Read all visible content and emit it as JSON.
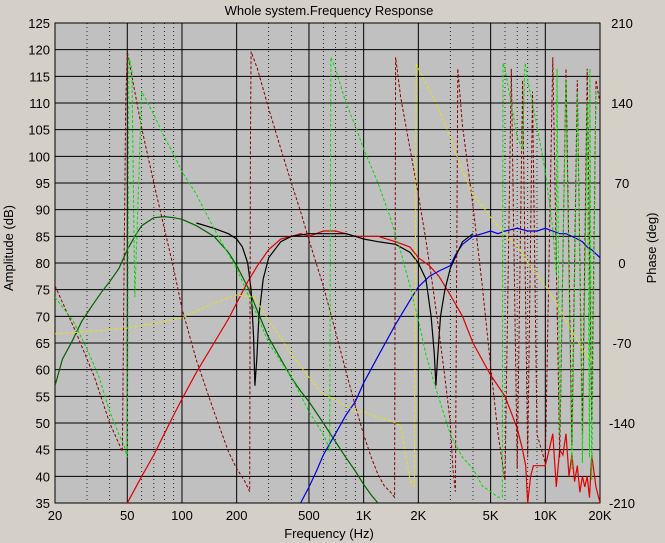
{
  "chart_data": {
    "type": "line",
    "title": "Whole system.Frequency Response",
    "xlabel": "Frequency (Hz)",
    "ylabel": "Amplitude (dB)",
    "y2label": "Phase (deg)",
    "xscale": "log",
    "xlim": [
      20,
      20000
    ],
    "ylim": [
      35,
      125
    ],
    "y2lim": [
      -210,
      210
    ],
    "grid": true,
    "plot_background": "#c0c0c0",
    "xticks": [
      {
        "value": 20,
        "label": "20"
      },
      {
        "value": 50,
        "label": "50"
      },
      {
        "value": 100,
        "label": "100"
      },
      {
        "value": 200,
        "label": "200"
      },
      {
        "value": 500,
        "label": "500"
      },
      {
        "value": 1000,
        "label": "1K"
      },
      {
        "value": 2000,
        "label": "2K"
      },
      {
        "value": 5000,
        "label": "5K"
      },
      {
        "value": 10000,
        "label": "10K"
      },
      {
        "value": 20000,
        "label": "20K"
      }
    ],
    "x_minor_gridlines": [
      30,
      40,
      60,
      70,
      80,
      90,
      300,
      400,
      600,
      700,
      800,
      900,
      3000,
      4000,
      6000,
      7000,
      8000,
      9000
    ],
    "yticks": [
      35,
      40,
      45,
      50,
      55,
      60,
      65,
      70,
      75,
      80,
      85,
      90,
      95,
      100,
      105,
      110,
      115,
      120,
      125
    ],
    "y2ticks": [
      210,
      140,
      70,
      0,
      -70,
      -140,
      -210
    ],
    "series": [
      {
        "color": "#006400",
        "style": "solid",
        "axis": "left",
        "x": [
          20,
          22,
          25,
          28,
          32,
          36,
          40,
          45,
          50,
          55,
          60,
          70,
          80,
          90,
          100,
          120,
          150,
          180,
          200,
          230,
          260,
          300,
          350,
          400,
          450,
          500,
          600,
          700,
          800,
          900,
          1000,
          1100,
          1200
        ],
        "y": [
          57,
          62,
          65.5,
          69,
          72,
          74.5,
          76.5,
          79,
          82.5,
          85,
          87,
          88.5,
          88.7,
          88.5,
          88.2,
          87,
          85,
          82,
          79.5,
          75.5,
          71,
          66,
          62,
          58.5,
          56,
          54,
          50,
          46.5,
          43.5,
          41,
          38.5,
          36.5,
          35
        ]
      },
      {
        "color": "#e00000",
        "style": "solid",
        "axis": "left",
        "x": [
          50,
          60,
          70,
          80,
          90,
          100,
          120,
          150,
          180,
          200,
          230,
          260,
          300,
          350,
          400,
          450,
          500,
          600,
          700,
          800,
          900,
          1000,
          1200,
          1500,
          1800,
          2000,
          2300,
          2600,
          3000,
          3500,
          4000,
          5000,
          6000,
          7000,
          7500,
          7800,
          8000,
          8300,
          8600,
          9000,
          10000,
          10500,
          11000,
          11500,
          12000,
          12500,
          13000,
          13500,
          14000,
          14500,
          15000,
          15500,
          16000,
          16500,
          17000,
          17500,
          18000,
          19000,
          20000
        ],
        "y": [
          35,
          40,
          44,
          48,
          51.5,
          54.5,
          59.5,
          65,
          69.5,
          72.5,
          76.5,
          79.5,
          82.5,
          84.5,
          85,
          85.5,
          85,
          86,
          86,
          85.5,
          85,
          85,
          85,
          84,
          83,
          81,
          79.5,
          77.5,
          74,
          70,
          65,
          59,
          55,
          49,
          45,
          42,
          35,
          40,
          42,
          42,
          42,
          45,
          48,
          38,
          45,
          44,
          48,
          40,
          44,
          39,
          42,
          37,
          40,
          38,
          40,
          36,
          44,
          38,
          35
        ]
      },
      {
        "color": "#0000dd",
        "style": "solid",
        "axis": "left",
        "x": [
          450,
          500,
          550,
          600,
          700,
          800,
          900,
          1000,
          1200,
          1500,
          1800,
          2000,
          2300,
          2600,
          3000,
          3200,
          3500,
          4000,
          4500,
          5000,
          5500,
          6000,
          7000,
          8000,
          9000,
          10000,
          11000,
          12000,
          13000,
          14000,
          15000,
          16000,
          17000,
          18000,
          20000
        ],
        "y": [
          35,
          38,
          41,
          44,
          48,
          51.5,
          54,
          57.5,
          62.5,
          68.5,
          73,
          75.5,
          77.5,
          78.5,
          79.5,
          81.5,
          83.5,
          85,
          85.5,
          86,
          85.5,
          86,
          86.5,
          86,
          86,
          86.5,
          86,
          85.5,
          85.5,
          85,
          84.5,
          84,
          83,
          82.5,
          81
        ]
      },
      {
        "color": "#000000",
        "style": "solid",
        "axis": "left",
        "x": [
          120,
          150,
          180,
          200,
          215,
          230,
          240,
          248,
          252,
          258,
          265,
          280,
          300,
          350,
          400,
          500,
          600,
          700,
          800,
          900,
          1000,
          1200,
          1500,
          1800,
          2000,
          2200,
          2350,
          2450,
          2500,
          2550,
          2650,
          2800,
          3000,
          3500,
          4000
        ],
        "y": [
          87.5,
          86.5,
          85.5,
          84.5,
          83,
          80,
          75,
          66,
          57,
          62,
          70,
          77,
          81,
          84,
          85,
          85.5,
          85.5,
          85.5,
          85.5,
          85,
          84.5,
          84,
          83.5,
          82,
          80,
          77,
          70,
          63,
          57,
          62,
          70,
          75,
          79,
          84,
          85.5
        ]
      },
      {
        "color": "#8b0000",
        "style": "dashed",
        "axis": "right",
        "x": [
          20,
          26,
          33,
          40,
          47,
          48,
          49,
          50,
          55,
          60,
          70,
          80,
          90,
          100,
          120,
          150,
          180,
          200,
          220,
          236,
          238,
          240,
          260,
          300,
          350,
          400,
          450,
          500,
          600,
          700,
          800,
          900,
          1000,
          1100,
          1200,
          1300,
          1400,
          1480,
          1500,
          1600,
          1800,
          2000,
          2200,
          2400,
          2600,
          2800,
          3000,
          3100,
          3200,
          3300,
          3500,
          4000,
          4500,
          5000,
          5500,
          6000,
          6500,
          7000,
          7500,
          8000,
          8500,
          9000,
          10000,
          11000,
          12000,
          13000,
          14000,
          15000,
          16000,
          17000,
          18000,
          19000,
          20000
        ],
        "y": [
          -20,
          -60,
          -100,
          -140,
          -165,
          0,
          140,
          185,
          150,
          118,
          70,
          30,
          -5,
          -40,
          -85,
          -130,
          -165,
          -180,
          -190,
          -200,
          100,
          185,
          170,
          135,
          100,
          70,
          45,
          20,
          -20,
          -60,
          -95,
          -125,
          -150,
          -170,
          -185,
          -195,
          -200,
          -205,
          180,
          145,
          100,
          60,
          20,
          -20,
          -60,
          -100,
          -140,
          -180,
          -200,
          170,
          120,
          50,
          -20,
          -90,
          -150,
          -190,
          170,
          -180,
          160,
          -170,
          150,
          -150,
          -175,
          180,
          -170,
          170,
          -160,
          160,
          -150,
          170,
          -140,
          160,
          140
        ]
      },
      {
        "color": "#00dd00",
        "style": "dashed",
        "axis": "right",
        "x": [
          20,
          25,
          30,
          35,
          40,
          45,
          48,
          50,
          51,
          53,
          55,
          60,
          70,
          80,
          90,
          100,
          120,
          150,
          200,
          250,
          300,
          400,
          500,
          600,
          640,
          650,
          660,
          700,
          800,
          900,
          1000,
          1200,
          1400,
          1600,
          1800,
          2000,
          2200,
          2500,
          3000,
          3500,
          4000,
          4500,
          5000,
          5500,
          5800,
          5850,
          6000,
          7000,
          7500,
          7700,
          7750,
          8000,
          9000,
          10000,
          11000,
          11500,
          11600,
          12000,
          13000,
          14000,
          15000,
          16000,
          17000,
          17500,
          17600,
          18000,
          19000
        ],
        "y": [
          -30,
          -50,
          -75,
          -100,
          -130,
          -150,
          -160,
          -170,
          180,
          170,
          -30,
          150,
          130,
          110,
          95,
          80,
          60,
          30,
          -5,
          -40,
          -70,
          -100,
          -130,
          -150,
          -160,
          -165,
          180,
          170,
          140,
          120,
          100,
          70,
          40,
          10,
          -20,
          -50,
          -80,
          -110,
          -150,
          -170,
          -180,
          -195,
          -200,
          -205,
          -205,
          175,
          170,
          110,
          100,
          170,
          175,
          160,
          120,
          80,
          30,
          -10,
          170,
          -150,
          160,
          -180,
          150,
          -175,
          140,
          -170,
          170,
          -190,
          150
        ]
      },
      {
        "color": "#e6e600",
        "style": "dashed",
        "axis": "right",
        "x": [
          20,
          30,
          50,
          70,
          100,
          150,
          200,
          250,
          300,
          400,
          500,
          600,
          700,
          800,
          900,
          1000,
          1200,
          1400,
          1600,
          1800,
          1900,
          1950,
          2000,
          2500,
          3000,
          3500,
          4000,
          4500,
          5000,
          6000,
          7000,
          8000,
          9000,
          10000,
          12000,
          14000,
          16000,
          18000
        ],
        "y": [
          -62,
          -60,
          -57,
          -53,
          -48,
          -35,
          -28,
          -30,
          -50,
          -80,
          -100,
          -115,
          -120,
          -125,
          -130,
          -130,
          -135,
          -138,
          -142,
          -190,
          -195,
          175,
          170,
          140,
          110,
          80,
          60,
          50,
          40,
          25,
          15,
          0,
          -10,
          -20,
          -40,
          -60,
          -75,
          -85
        ]
      }
    ]
  }
}
